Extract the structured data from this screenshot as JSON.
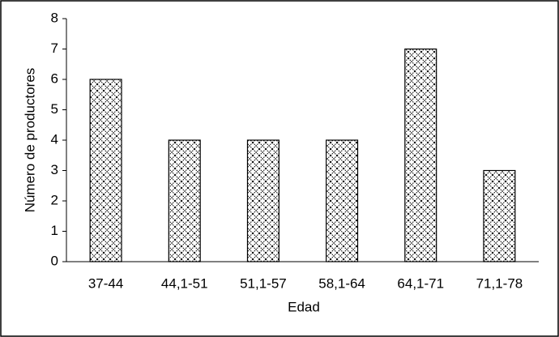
{
  "chart_data": {
    "type": "bar",
    "x_label": "Edad",
    "y_label": "Número de productores",
    "categories": [
      "37-44",
      "44,1-51",
      "51,1-57",
      "58,1-64",
      "64,1-71",
      "71,1-78"
    ],
    "values": [
      6,
      4,
      4,
      4,
      7,
      3
    ],
    "color": "#000000",
    "ylim": [
      0,
      8
    ],
    "yticks": [
      0,
      1,
      2,
      3,
      4,
      5,
      6,
      7,
      8
    ],
    "grid": false
  }
}
